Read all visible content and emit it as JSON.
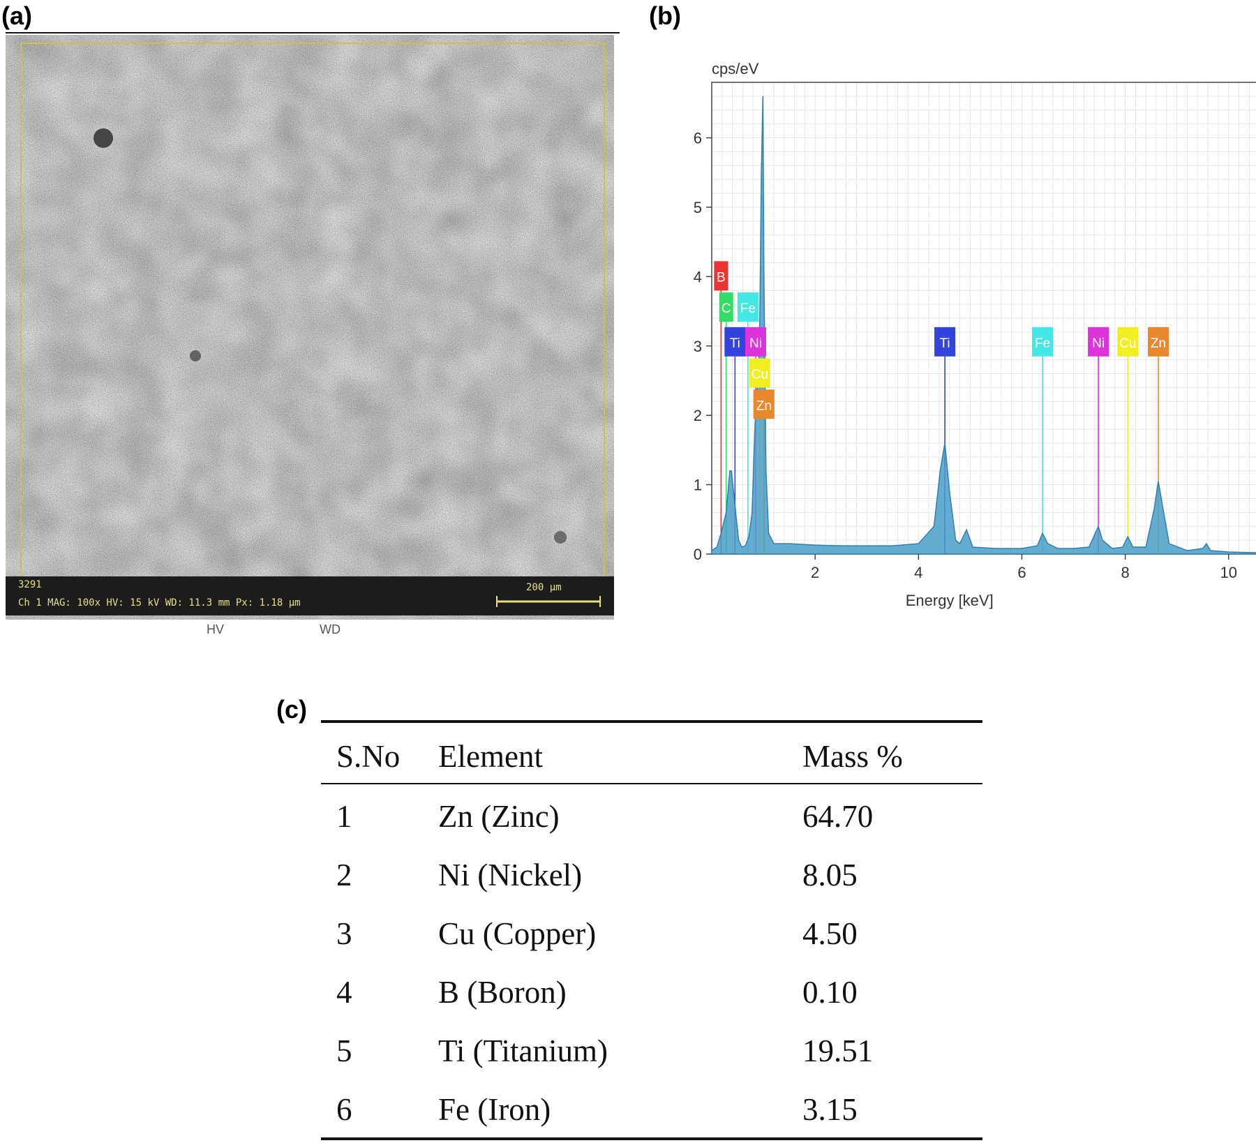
{
  "panels": {
    "a": "(a)",
    "b": "(b)",
    "c": "(c)"
  },
  "sem": {
    "info_line_1": "3291",
    "info_line_2": "Ch 1    MAG: 100x    HV: 15 kV    WD: 11.3 mm    Px: 1.18 µm",
    "scale_bar": "200 µm",
    "under_labels": [
      "HV",
      "WD"
    ]
  },
  "chart_data": {
    "type": "line",
    "title": "",
    "xlabel": "Energy [keV]",
    "ylabel": "cps/eV",
    "xlim": [
      0,
      10.8
    ],
    "ylim": [
      0,
      6.8
    ],
    "xticks": [
      2,
      4,
      6,
      8,
      10
    ],
    "yticks": [
      0,
      1,
      2,
      3,
      4,
      5,
      6
    ],
    "grid": true,
    "series": [
      {
        "x": [
          0,
          0.1,
          0.18,
          0.28,
          0.35,
          0.38,
          0.45,
          0.52,
          0.58,
          0.65,
          0.72,
          0.78,
          0.82,
          0.86,
          0.9,
          0.93,
          0.96,
          0.99,
          1.01,
          1.05,
          1.1,
          1.2,
          1.5,
          2.0,
          2.5,
          3.0,
          3.5,
          4.0,
          4.3,
          4.42,
          4.51,
          4.6,
          4.72,
          4.8,
          4.93,
          5.05,
          5.5,
          6.0,
          6.3,
          6.4,
          6.5,
          6.7,
          7.0,
          7.3,
          7.42,
          7.48,
          7.56,
          7.75,
          7.95,
          8.05,
          8.15,
          8.4,
          8.56,
          8.64,
          8.72,
          8.85,
          9.2,
          9.5,
          9.57,
          9.65,
          10.0,
          10.5,
          10.8
        ],
        "y": [
          0.05,
          0.1,
          0.3,
          0.6,
          1.2,
          1.2,
          0.7,
          0.2,
          0.1,
          0.12,
          0.25,
          0.6,
          1.5,
          2.3,
          2.5,
          3.4,
          5.5,
          6.6,
          4.0,
          1.2,
          0.3,
          0.15,
          0.15,
          0.13,
          0.12,
          0.12,
          0.12,
          0.15,
          0.4,
          1.2,
          1.6,
          0.9,
          0.2,
          0.15,
          0.35,
          0.1,
          0.08,
          0.08,
          0.12,
          0.3,
          0.15,
          0.08,
          0.08,
          0.1,
          0.3,
          0.4,
          0.2,
          0.08,
          0.1,
          0.25,
          0.1,
          0.1,
          0.65,
          1.05,
          0.7,
          0.15,
          0.05,
          0.08,
          0.15,
          0.05,
          0.03,
          0.02,
          0.02
        ]
      }
    ],
    "element_labels": [
      {
        "label": "B",
        "energy": 0.18,
        "row": 4.0,
        "color": "#ee3333"
      },
      {
        "label": "C",
        "energy": 0.28,
        "row": 3.55,
        "color": "#33dd66"
      },
      {
        "label": "Fe",
        "energy": 0.7,
        "row": 3.55,
        "color": "#44e6e6"
      },
      {
        "label": "Ti",
        "energy": 0.45,
        "row": 3.05,
        "color": "#3344dd"
      },
      {
        "label": "Ni",
        "energy": 0.85,
        "row": 3.05,
        "color": "#dd33dd"
      },
      {
        "label": "Cu",
        "energy": 0.93,
        "row": 2.6,
        "color": "#f2ee22"
      },
      {
        "label": "Zn",
        "energy": 1.01,
        "row": 2.15,
        "color": "#e9882d"
      },
      {
        "label": "Ti",
        "energy": 4.51,
        "row": 3.05,
        "color": "#3344dd"
      },
      {
        "label": "Fe",
        "energy": 6.4,
        "row": 3.05,
        "color": "#44e6e6"
      },
      {
        "label": "Ni",
        "energy": 7.48,
        "row": 3.05,
        "color": "#dd33dd"
      },
      {
        "label": "Cu",
        "energy": 8.05,
        "row": 3.05,
        "color": "#f2ee22"
      },
      {
        "label": "Zn",
        "energy": 8.64,
        "row": 3.05,
        "color": "#e9882d"
      }
    ]
  },
  "table": {
    "headers": [
      "S.No",
      "Element",
      "Mass %"
    ],
    "rows": [
      [
        "1",
        "Zn (Zinc)",
        "64.70"
      ],
      [
        "2",
        "Ni (Nickel)",
        "8.05"
      ],
      [
        "3",
        "Cu (Copper)",
        "4.50"
      ],
      [
        "4",
        "B (Boron)",
        "0.10"
      ],
      [
        "5",
        "Ti (Titanium)",
        "19.51"
      ],
      [
        "6",
        "Fe (Iron)",
        "3.15"
      ]
    ]
  }
}
